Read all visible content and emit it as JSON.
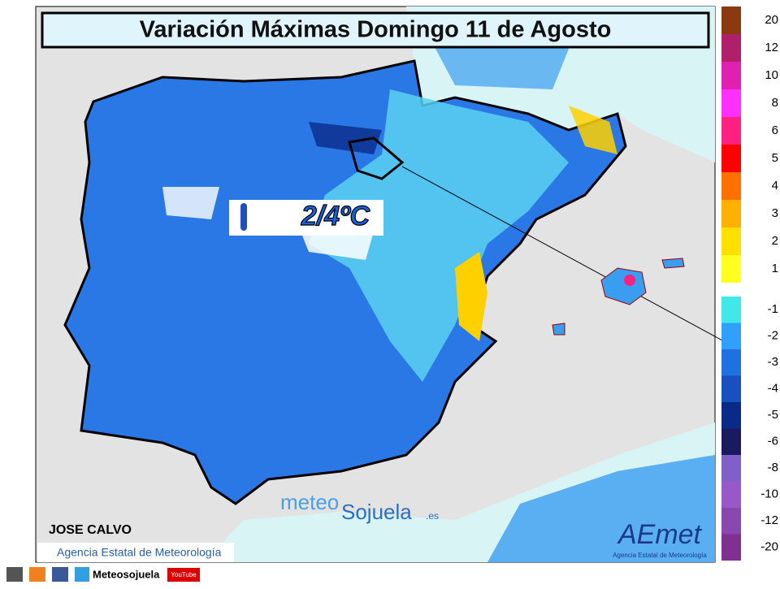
{
  "title": "Variación Máximas Domingo 11 de Agosto",
  "annotation": "2/4ºC",
  "author": "JOSE CALVO",
  "credit": "Agencia Estatal de Meteorología",
  "logo": {
    "name": "AEmet",
    "subtitle": "Agencia Estatal de Meteorología"
  },
  "watermark": {
    "part1": "meteo",
    "part2": "Sojuela",
    "suffix": ".es"
  },
  "footer": {
    "site": "Meteosojuela",
    "video": "YouTube"
  },
  "legend_warm": [
    {
      "value": 20,
      "color": "#8b3a10"
    },
    {
      "value": 12,
      "color": "#b0206a"
    },
    {
      "value": 10,
      "color": "#e020b0"
    },
    {
      "value": 8,
      "color": "#ff30ff"
    },
    {
      "value": 6,
      "color": "#ff2080"
    },
    {
      "value": 5,
      "color": "#ff0000"
    },
    {
      "value": 4,
      "color": "#ff7000"
    },
    {
      "value": 3,
      "color": "#ffb000"
    },
    {
      "value": 2,
      "color": "#ffe000"
    },
    {
      "value": 1,
      "color": "#ffff20"
    }
  ],
  "legend_cold": [
    {
      "value": -1,
      "color": "#40e8e8"
    },
    {
      "value": -2,
      "color": "#30a0ff"
    },
    {
      "value": -3,
      "color": "#2070e0"
    },
    {
      "value": -4,
      "color": "#1850c0"
    },
    {
      "value": -5,
      "color": "#0a2a88"
    },
    {
      "value": -6,
      "color": "#1a1a60"
    },
    {
      "value": -8,
      "color": "#8060c8"
    },
    {
      "value": -10,
      "color": "#9858c8"
    },
    {
      "value": -12,
      "color": "#8848b0"
    },
    {
      "value": -20,
      "color": "#803090"
    }
  ]
}
